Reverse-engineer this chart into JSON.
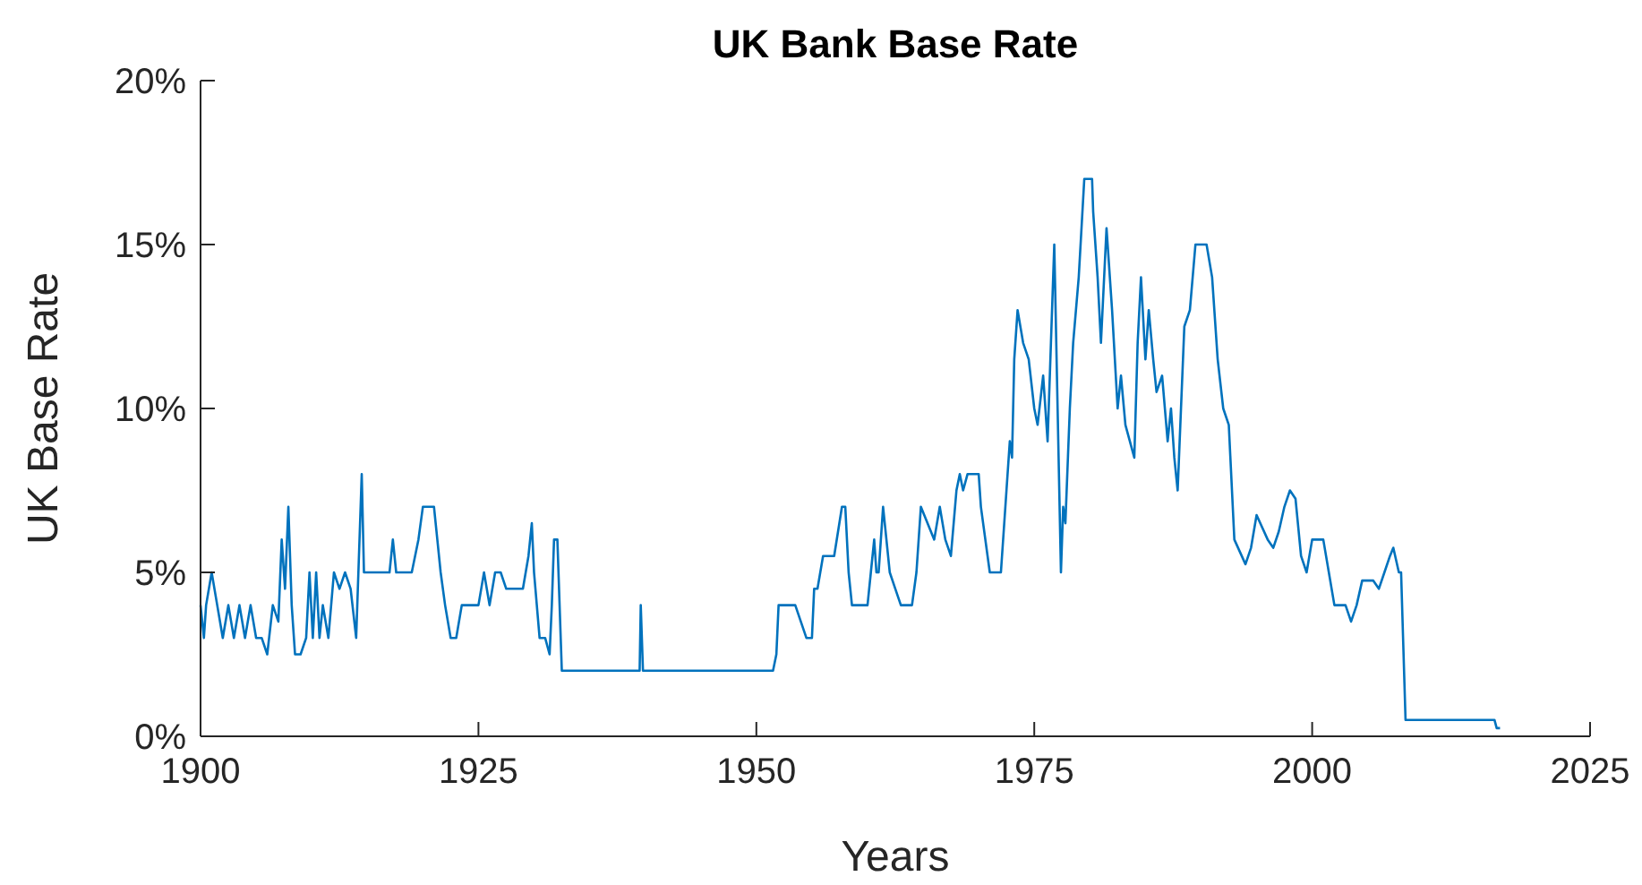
{
  "chart_data": {
    "type": "line",
    "title": "UK Bank Base Rate",
    "xlabel": "Years",
    "ylabel": "UK Base Rate",
    "x": [
      1900,
      1900.3,
      1900.5,
      1901,
      1901.5,
      1902,
      1902.5,
      1903,
      1903.5,
      1904,
      1904.5,
      1905,
      1905.5,
      1906,
      1906.5,
      1907,
      1907.3,
      1907.6,
      1907.9,
      1908.2,
      1908.5,
      1909,
      1909.5,
      1909.8,
      1910.1,
      1910.4,
      1910.7,
      1911,
      1911.5,
      1912,
      1912.5,
      1913,
      1913.5,
      1914,
      1914.5,
      1914.7,
      1915,
      1917,
      1917.3,
      1917.6,
      1919,
      1919.6,
      1920,
      1921,
      1921.3,
      1921.6,
      1922,
      1922.5,
      1923,
      1923.5,
      1924,
      1925,
      1925.5,
      1926,
      1926.5,
      1927,
      1927.5,
      1929,
      1929.5,
      1929.8,
      1930,
      1930.5,
      1931,
      1931.4,
      1931.6,
      1931.8,
      1932.1,
      1932.5,
      1939.5,
      1939.6,
      1939.8,
      1951.5,
      1951.8,
      1952,
      1953.5,
      1954,
      1954.5,
      1955,
      1955.2,
      1955.5,
      1956,
      1957,
      1957.7,
      1958,
      1958.3,
      1958.6,
      1960,
      1960.3,
      1960.6,
      1960.8,
      1961,
      1961.4,
      1961.7,
      1962,
      1962.5,
      1963,
      1964,
      1964.4,
      1964.8,
      1966,
      1966.5,
      1967,
      1967.5,
      1968,
      1968.3,
      1968.6,
      1969,
      1970,
      1970.2,
      1971,
      1972,
      1972.5,
      1972.8,
      1973,
      1973.2,
      1973.5,
      1974,
      1974.5,
      1975,
      1975.3,
      1975.8,
      1976.2,
      1976.5,
      1976.8,
      1977.1,
      1977.4,
      1977.6,
      1977.8,
      1978.2,
      1978.5,
      1979,
      1979.5,
      1980.2,
      1980.3,
      1980.7,
      1981,
      1981.5,
      1982,
      1982.5,
      1982.8,
      1983.2,
      1983.6,
      1984,
      1984.3,
      1984.6,
      1985,
      1985.3,
      1985.7,
      1986,
      1986.5,
      1987,
      1987.3,
      1987.6,
      1987.9,
      1988.5,
      1989,
      1989.5,
      1990.5,
      1991,
      1991.5,
      1992,
      1992.5,
      1993,
      1994,
      1994.5,
      1995,
      1996,
      1996.5,
      1997,
      1997.5,
      1998,
      1998.5,
      1999,
      1999.5,
      2000,
      2001,
      2001.5,
      2002,
      2003,
      2003.5,
      2004,
      2004.5,
      2005.5,
      2006,
      2006.5,
      2007,
      2007.3,
      2007.8,
      2008,
      2008.4,
      2016.4,
      2016.6,
      2016.9
    ],
    "series": [
      {
        "color": "#0072bd",
        "values": [
          4,
          3,
          4,
          5,
          4,
          3,
          4,
          3,
          4,
          3,
          4,
          3,
          3,
          2.5,
          4,
          3.5,
          6,
          4.5,
          7,
          4,
          2.5,
          2.5,
          3,
          5,
          3,
          5,
          3,
          4,
          3,
          5,
          4.5,
          5,
          4.5,
          3,
          8,
          5,
          5,
          5,
          6,
          5,
          5,
          6,
          7,
          7,
          6,
          5,
          4,
          3,
          3,
          4,
          4,
          4,
          5,
          4,
          5,
          5,
          4.5,
          4.5,
          5.5,
          6.5,
          5,
          3,
          3,
          2.5,
          4,
          6,
          6,
          2,
          2,
          4,
          2,
          2,
          2.5,
          4,
          4,
          3.5,
          3,
          3,
          4.5,
          4.5,
          5.5,
          5.5,
          7,
          7,
          5,
          4,
          4,
          5,
          6,
          5,
          5,
          7,
          6,
          5,
          4.5,
          4,
          4,
          5,
          7,
          6,
          7,
          6,
          5.5,
          7.5,
          8,
          7.5,
          8,
          8,
          7,
          5,
          5,
          7.5,
          9,
          8.5,
          11.5,
          13,
          12,
          11.5,
          10,
          9.5,
          11,
          9,
          12,
          15,
          10,
          5,
          7,
          6.5,
          10,
          12,
          14,
          17,
          17,
          16,
          14,
          12,
          15.5,
          13,
          10,
          11,
          9.5,
          9,
          8.5,
          12,
          14,
          11.5,
          13,
          11.5,
          10.5,
          11,
          9,
          10,
          8.5,
          7.5,
          12.5,
          13,
          15,
          15,
          14,
          11.5,
          10,
          9.5,
          6,
          5.25,
          5.75,
          6.75,
          6,
          5.75,
          6.25,
          7,
          7.5,
          7.25,
          5.5,
          5,
          6,
          6,
          5,
          4,
          4,
          3.5,
          4,
          4.75,
          4.75,
          4.5,
          5,
          5.5,
          5.75,
          5,
          5,
          0.5,
          0.5,
          0.25,
          0.25
        ]
      }
    ],
    "xlim": [
      1900,
      2025
    ],
    "xticks": [
      1900,
      1925,
      1950,
      1975,
      2000,
      2025
    ],
    "ylim": [
      0,
      20
    ],
    "yticks": [
      {
        "value": 0,
        "label": "0%"
      },
      {
        "value": 5,
        "label": "5%"
      },
      {
        "value": 10,
        "label": "10%"
      },
      {
        "value": 15,
        "label": "15%"
      },
      {
        "value": 20,
        "label": "20%"
      }
    ],
    "grid": false
  }
}
